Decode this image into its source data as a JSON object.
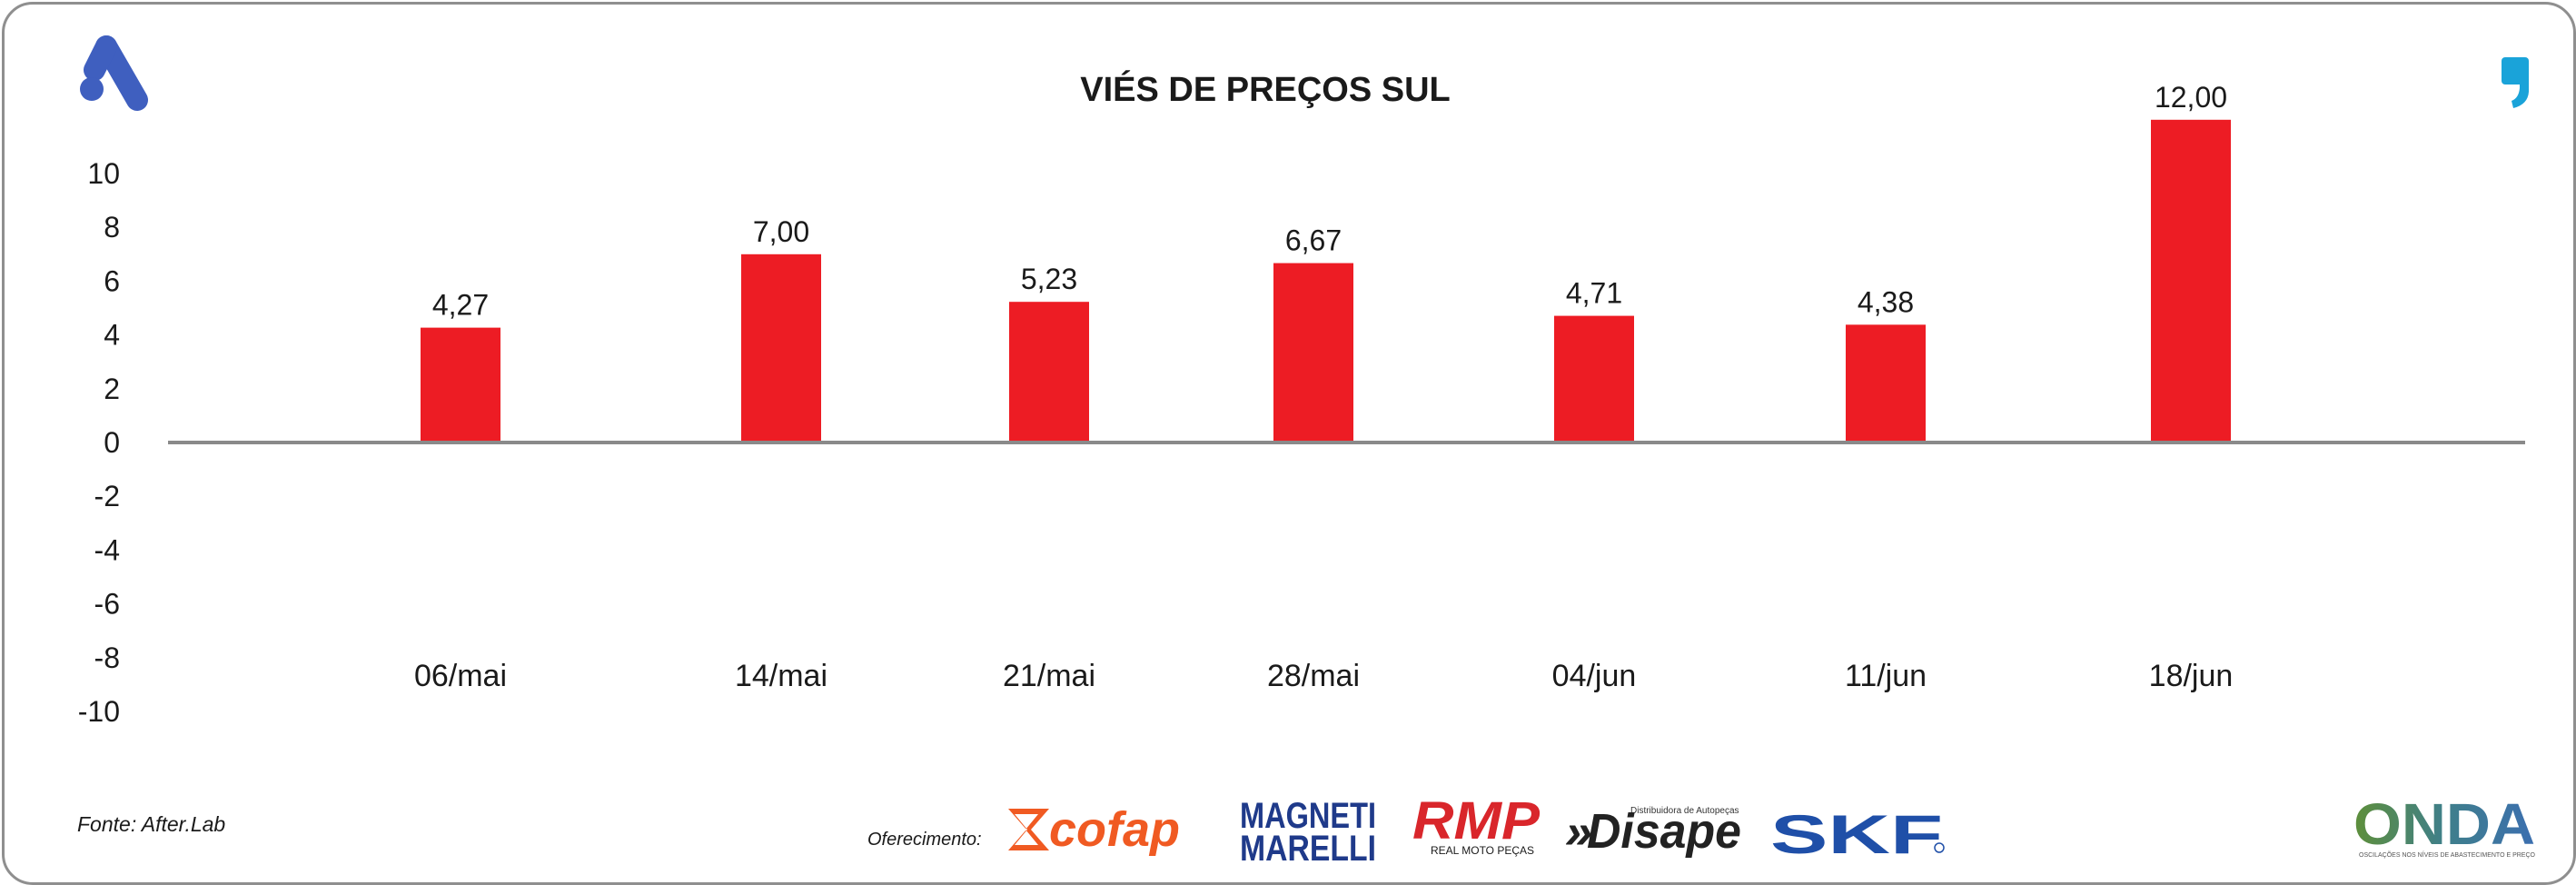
{
  "chart_data": {
    "type": "bar",
    "title": "VIÉS DE PREÇOS SUL",
    "categories": [
      "06/mai",
      "14/mai",
      "21/mai",
      "28/mai",
      "04/jun",
      "11/jun",
      "18/jun"
    ],
    "values": [
      4.27,
      7.0,
      5.23,
      6.67,
      4.71,
      4.38,
      12.0
    ],
    "value_labels": [
      "4,27",
      "7,00",
      "5,23",
      "6,67",
      "4,71",
      "4,38",
      "12,00"
    ],
    "y_ticks": [
      "10",
      "8",
      "6",
      "4",
      "2",
      "0",
      "-2",
      "-4",
      "-6",
      "-8",
      "-10"
    ],
    "ylim": [
      -10,
      10
    ],
    "grid": false,
    "legend": "none",
    "bar_color": "#ed1c24"
  },
  "footer": {
    "source": "Fonte: After.Lab",
    "sponsor_label": "Oferecimento:",
    "sponsors": [
      "cofap",
      "MAGNETI MARELLI",
      "RMP",
      "Disape",
      "SKF"
    ],
    "rmp_tagline": "REAL MOTO PEÇAS",
    "disape_tagline": "Distribuidora de Autopeças",
    "brand": "ONDA",
    "brand_tagline": "OSCILAÇÕES NOS NÍVEIS DE ABASTECIMENTO E PREÇO"
  },
  "icons": [
    "after-logo-icon",
    "quote-comma-icon"
  ]
}
